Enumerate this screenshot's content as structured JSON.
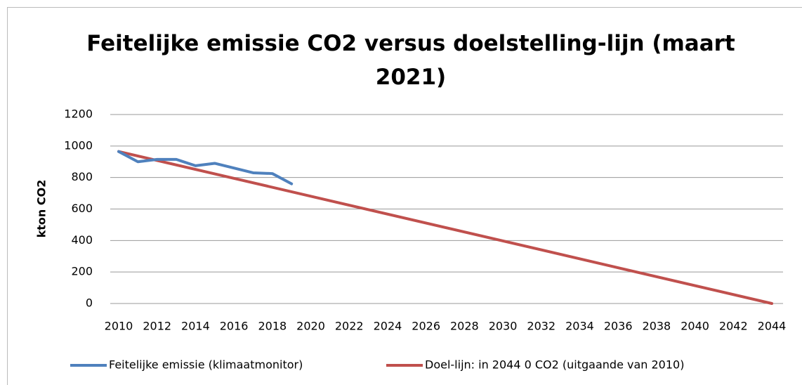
{
  "chart_data": {
    "type": "line",
    "title": "Feitelijke emissie CO2 versus doelstelling-lijn (maart 2021)",
    "ylabel": "kton CO2",
    "xlim": [
      2010,
      2044
    ],
    "xticks": [
      2010,
      2012,
      2014,
      2016,
      2018,
      2020,
      2022,
      2024,
      2026,
      2028,
      2030,
      2032,
      2034,
      2036,
      2038,
      2040,
      2042,
      2044
    ],
    "ylim": [
      0,
      1200
    ],
    "yticks": [
      0,
      200,
      400,
      600,
      800,
      1000,
      1200
    ],
    "grid": true,
    "legend": "bottom",
    "series": [
      {
        "name": "Feitelijke emissie (klimaatmonitor)",
        "color": "#4f81bd",
        "x": [
          2010,
          2011,
          2012,
          2013,
          2014,
          2015,
          2016,
          2017,
          2018,
          2019
        ],
        "values": [
          965,
          900,
          915,
          915,
          875,
          890,
          860,
          830,
          825,
          760
        ]
      },
      {
        "name": "Doel-lijn: in 2044 0 CO2 (uitgaande van 2010)",
        "color": "#c0504d",
        "x": [
          2010,
          2044
        ],
        "values": [
          965,
          0
        ]
      }
    ]
  }
}
